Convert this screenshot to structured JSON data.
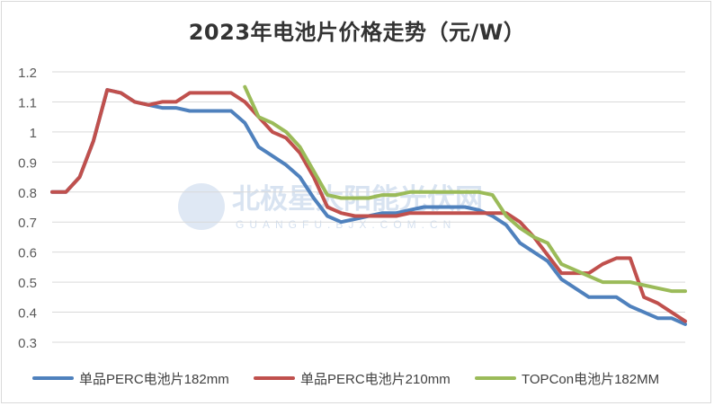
{
  "chart_data": {
    "type": "line",
    "title": "2023年电池片价格走势（元/W）",
    "xlabel": "",
    "ylabel": "",
    "ylim": [
      0.3,
      1.2
    ],
    "yticks": [
      "0.3",
      "0.4",
      "0.5",
      "0.6",
      "0.7",
      "0.8",
      "0.9",
      "1",
      "1.1",
      "1.2"
    ],
    "grid": true,
    "legend_position": "bottom",
    "watermark": "北极星太阳能光伏网 GUANGFU.BJX.COM.CN",
    "series": [
      {
        "name": "单品PERC电池片182mm",
        "color": "#4f81bd",
        "values": [
          0.8,
          0.8,
          0.85,
          0.97,
          1.14,
          1.13,
          1.1,
          1.09,
          1.08,
          1.08,
          1.07,
          1.07,
          1.07,
          1.07,
          1.03,
          0.95,
          0.92,
          0.89,
          0.85,
          0.78,
          0.72,
          0.7,
          0.71,
          0.72,
          0.73,
          0.73,
          0.74,
          0.75,
          0.75,
          0.75,
          0.75,
          0.74,
          0.72,
          0.69,
          0.63,
          0.6,
          0.57,
          0.51,
          0.48,
          0.45,
          0.45,
          0.45,
          0.42,
          0.4,
          0.38,
          0.38,
          0.36
        ]
      },
      {
        "name": "单品PERC电池片210mm",
        "color": "#c0504d",
        "values": [
          0.8,
          0.8,
          0.85,
          0.97,
          1.14,
          1.13,
          1.1,
          1.09,
          1.1,
          1.1,
          1.13,
          1.13,
          1.13,
          1.13,
          1.1,
          1.05,
          1.0,
          0.98,
          0.93,
          0.85,
          0.75,
          0.73,
          0.72,
          0.72,
          0.72,
          0.72,
          0.73,
          0.73,
          0.73,
          0.73,
          0.73,
          0.73,
          0.73,
          0.73,
          0.7,
          0.65,
          0.59,
          0.53,
          0.53,
          0.53,
          0.56,
          0.58,
          0.58,
          0.45,
          0.43,
          0.4,
          0.37
        ]
      },
      {
        "name": "TOPCon电池片182MM",
        "color": "#9bbb59",
        "values": [
          null,
          null,
          null,
          null,
          null,
          null,
          null,
          null,
          null,
          null,
          null,
          null,
          null,
          null,
          1.15,
          1.05,
          1.03,
          1.0,
          0.95,
          0.87,
          0.79,
          0.78,
          0.78,
          0.78,
          0.79,
          0.79,
          0.8,
          0.8,
          0.8,
          0.8,
          0.8,
          0.8,
          0.79,
          0.72,
          0.68,
          0.65,
          0.63,
          0.56,
          0.54,
          0.52,
          0.5,
          0.5,
          0.5,
          0.49,
          0.48,
          0.47,
          0.47
        ]
      }
    ]
  }
}
